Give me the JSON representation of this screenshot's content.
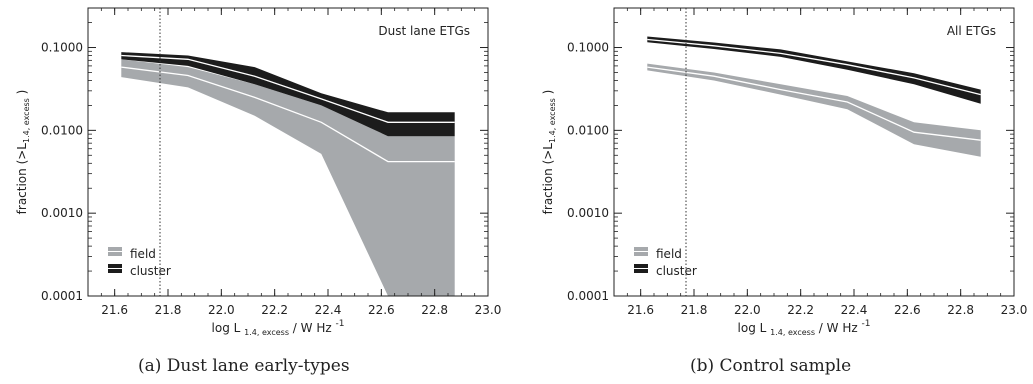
{
  "chart_data": [
    {
      "type": "area",
      "panel_label": "Dust lane ETGs",
      "caption": "(a)  Dust lane early-types",
      "xlabel": "log L 1.4, excess  / W Hz -1",
      "ylabel": "fraction (>L1.4, excess )",
      "xlim": [
        21.5,
        23.0
      ],
      "ylim": [
        0.0001,
        0.3
      ],
      "yscale": "log",
      "xticks": [
        "21.6",
        "21.8",
        "22.0",
        "22.2",
        "22.4",
        "22.6",
        "22.8",
        "23.0"
      ],
      "yticks": [
        "0.0001",
        "0.0010",
        "0.0100",
        "0.1000"
      ],
      "vline_x": 21.77,
      "legend_position": "bottom-left",
      "x": [
        21.625,
        21.875,
        22.125,
        22.375,
        22.625,
        22.875
      ],
      "series": [
        {
          "name": "field",
          "color": "#a6a9ac",
          "median": [
            0.058,
            0.046,
            0.025,
            0.0125,
            0.0042,
            0.0042
          ],
          "lower": [
            0.044,
            0.033,
            0.015,
            0.0052,
            0.0001,
            0.0001
          ],
          "upper": [
            0.072,
            0.058,
            0.036,
            0.02,
            0.0085,
            0.0085
          ]
        },
        {
          "name": "cluster",
          "color": "#1c1c1c",
          "median": [
            0.08,
            0.072,
            0.045,
            0.024,
            0.0125,
            0.0125
          ],
          "lower": [
            0.072,
            0.06,
            0.036,
            0.02,
            0.0085,
            0.0085
          ],
          "upper": [
            0.088,
            0.08,
            0.058,
            0.028,
            0.0165,
            0.0165
          ]
        }
      ]
    },
    {
      "type": "area",
      "panel_label": "All ETGs",
      "caption": "(b)  Control sample",
      "xlabel": "log L 1.4, excess  / W Hz -1",
      "ylabel": "fraction (>L1.4, excess )",
      "xlim": [
        21.5,
        23.0
      ],
      "ylim": [
        0.0001,
        0.3
      ],
      "yscale": "log",
      "xticks": [
        "21.6",
        "21.8",
        "22.0",
        "22.2",
        "22.4",
        "22.6",
        "22.8",
        "23.0"
      ],
      "yticks": [
        "0.0001",
        "0.0010",
        "0.0100",
        "0.1000"
      ],
      "vline_x": 21.77,
      "legend_position": "bottom-left",
      "x": [
        21.625,
        21.875,
        22.125,
        22.375,
        22.625,
        22.875
      ],
      "series": [
        {
          "name": "field",
          "color": "#a6a9ac",
          "median": [
            0.058,
            0.045,
            0.031,
            0.022,
            0.0095,
            0.0076
          ],
          "lower": [
            0.053,
            0.04,
            0.027,
            0.018,
            0.0068,
            0.0048
          ],
          "upper": [
            0.064,
            0.05,
            0.036,
            0.026,
            0.0125,
            0.01
          ]
        },
        {
          "name": "cluster",
          "color": "#1c1c1c",
          "median": [
            0.125,
            0.105,
            0.085,
            0.062,
            0.043,
            0.027
          ],
          "lower": [
            0.116,
            0.096,
            0.077,
            0.054,
            0.036,
            0.021
          ],
          "upper": [
            0.136,
            0.115,
            0.095,
            0.068,
            0.049,
            0.031
          ]
        }
      ]
    }
  ]
}
